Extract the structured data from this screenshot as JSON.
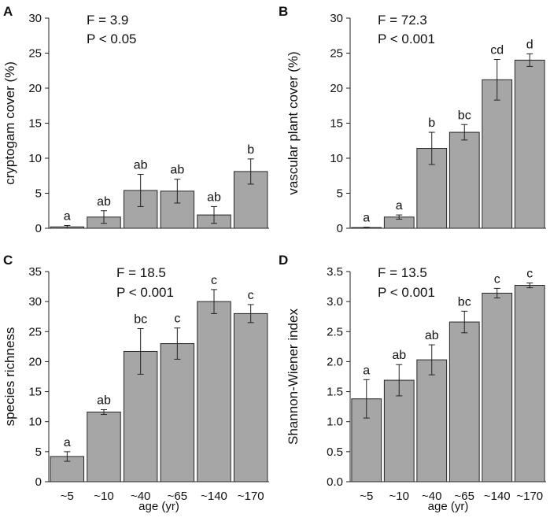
{
  "chart_data": [
    {
      "panel": "A",
      "type": "bar",
      "categories": [
        "~5",
        "~10",
        "~40",
        "~65",
        "~140",
        "~170"
      ],
      "values": [
        0.2,
        1.6,
        5.4,
        5.3,
        1.9,
        8.1
      ],
      "errors": [
        0.2,
        0.9,
        2.3,
        1.7,
        1.2,
        1.8
      ],
      "significance": [
        "a",
        "ab",
        "ab",
        "ab",
        "ab",
        "b"
      ],
      "ylabel": "cryptogam cover (%)",
      "xlabel": "",
      "ylim": [
        0,
        30
      ],
      "yticks": [
        "0",
        "5",
        "10",
        "15",
        "20",
        "25",
        "30"
      ],
      "stat_f": "F = 3.9",
      "stat_p": "P < 0.05"
    },
    {
      "panel": "B",
      "type": "bar",
      "categories": [
        "~5",
        "~10",
        "~40",
        "~65",
        "~140",
        "~170"
      ],
      "values": [
        0.1,
        1.6,
        11.4,
        13.7,
        21.2,
        24.0
      ],
      "errors": [
        0.05,
        0.3,
        2.3,
        1.1,
        2.9,
        0.9
      ],
      "significance": [
        "a",
        "a",
        "b",
        "bc",
        "cd",
        "d"
      ],
      "ylabel": "vascular plant cover (%)",
      "xlabel": "",
      "ylim": [
        0,
        30
      ],
      "yticks": [
        "0",
        "5",
        "10",
        "15",
        "20",
        "25",
        "30"
      ],
      "stat_f": "F = 72.3",
      "stat_p": "P < 0.001"
    },
    {
      "panel": "C",
      "type": "bar",
      "categories": [
        "~5",
        "~10",
        "~40",
        "~65",
        "~140",
        "~170"
      ],
      "values": [
        4.2,
        11.6,
        21.7,
        23.0,
        30.0,
        28.0
      ],
      "errors": [
        0.8,
        0.4,
        3.8,
        2.6,
        2.0,
        1.5
      ],
      "significance": [
        "a",
        "ab",
        "bc",
        "c",
        "c",
        "c"
      ],
      "ylabel": "species richness",
      "xlabel": "age (yr)",
      "ylim": [
        0,
        35
      ],
      "yticks": [
        "0",
        "5",
        "10",
        "15",
        "20",
        "25",
        "30",
        "35"
      ],
      "stat_f": "F = 18.5",
      "stat_p": "P < 0.001"
    },
    {
      "panel": "D",
      "type": "bar",
      "categories": [
        "~5",
        "~10",
        "~40",
        "~65",
        "~140",
        "~170"
      ],
      "values": [
        1.38,
        1.69,
        2.03,
        2.66,
        3.14,
        3.27
      ],
      "errors": [
        0.32,
        0.26,
        0.25,
        0.18,
        0.08,
        0.04
      ],
      "significance": [
        "a",
        "ab",
        "ab",
        "bc",
        "c",
        "c"
      ],
      "ylabel": "Shannon-Wiener index",
      "xlabel": "age (yr)",
      "ylim": [
        0,
        3.5
      ],
      "yticks": [
        "0.0",
        "0.5",
        "1.0",
        "1.5",
        "2.0",
        "2.5",
        "3.0",
        "3.5"
      ],
      "stat_f": "F = 13.5",
      "stat_p": "P < 0.001"
    }
  ]
}
